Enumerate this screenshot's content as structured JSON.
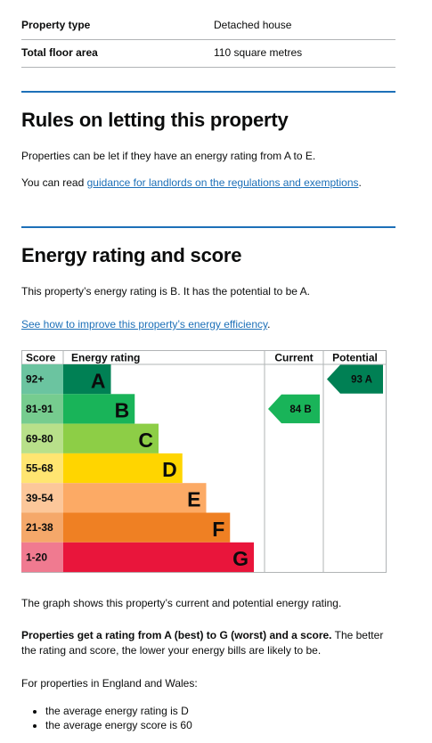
{
  "summary": [
    {
      "key": "Property type",
      "value": "Detached house"
    },
    {
      "key": "Total floor area",
      "value": "110 square metres"
    }
  ],
  "rules": {
    "heading": "Rules on letting this property",
    "p1": "Properties can be let if they have an energy rating from A to E.",
    "p2_prefix": "You can read ",
    "p2_link": "guidance for landlords on the regulations and exemptions",
    "p2_suffix": "."
  },
  "energy": {
    "heading": "Energy rating and score",
    "p1": "This property’s energy rating is B. It has the potential to be A.",
    "link": "See how to improve this property’s energy efficiency",
    "link_suffix": "."
  },
  "chart_data": {
    "type": "table",
    "headers": {
      "score": "Score",
      "rating": "Energy rating",
      "current": "Current",
      "potential": "Potential"
    },
    "bands": [
      {
        "range": "92+",
        "letter": "A",
        "color": "#008054",
        "score_bg": "#6bc4a0",
        "length": 0.25
      },
      {
        "range": "81-91",
        "letter": "B",
        "color": "#19b459",
        "score_bg": "#76cc8f",
        "length": 0.375
      },
      {
        "range": "69-80",
        "letter": "C",
        "color": "#8dce46",
        "score_bg": "#b8e08a",
        "length": 0.5
      },
      {
        "range": "55-68",
        "letter": "D",
        "color": "#ffd500",
        "score_bg": "#ffe571",
        "length": 0.625
      },
      {
        "range": "39-54",
        "letter": "E",
        "color": "#fcaa65",
        "score_bg": "#fcc79a",
        "length": 0.75
      },
      {
        "range": "21-38",
        "letter": "F",
        "color": "#ef8023",
        "score_bg": "#f5a86a",
        "length": 0.875
      },
      {
        "range": "1-20",
        "letter": "G",
        "color": "#e9153b",
        "score_bg": "#f07a90",
        "length": 1.0
      }
    ],
    "current": {
      "score": 84,
      "letter": "B",
      "label": "84 B",
      "color": "#19b459"
    },
    "potential": {
      "score": 93,
      "letter": "A",
      "label": "93 A",
      "color": "#008054"
    }
  },
  "after": {
    "p1": "The graph shows this property’s current and potential energy rating.",
    "p2_bold": "Properties get a rating from A (best) to G (worst) and a score.",
    "p2_rest": " The better the rating and score, the lower your energy bills are likely to be.",
    "p3": "For properties in England and Wales:",
    "bullets": [
      "the average energy rating is D",
      "the average energy score is 60"
    ]
  }
}
